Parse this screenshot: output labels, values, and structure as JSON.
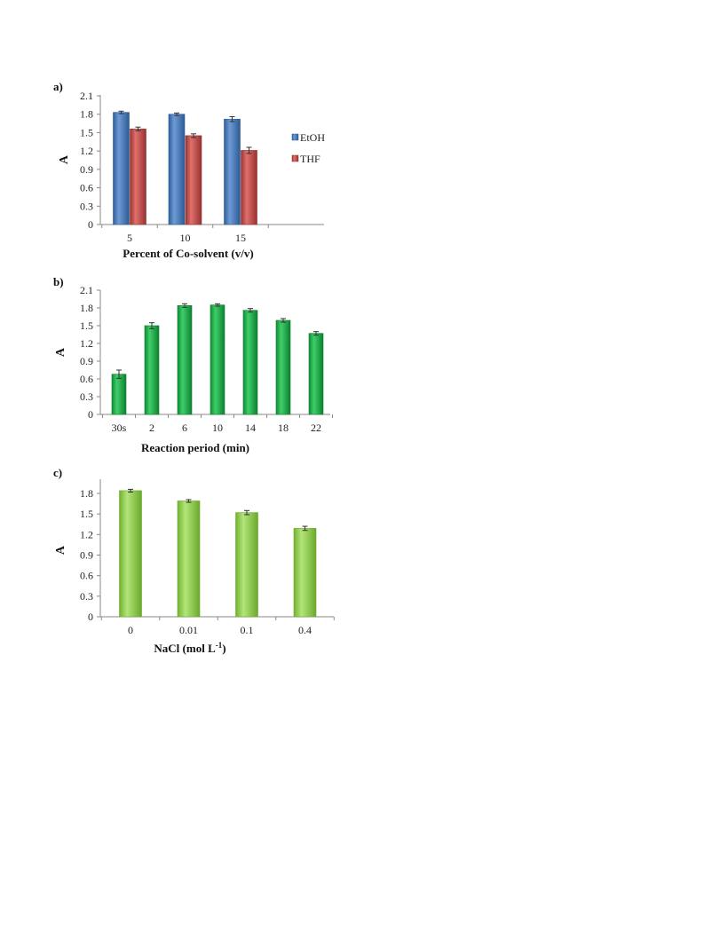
{
  "chart_data": [
    {
      "type": "bar",
      "panel": "a)",
      "categories": [
        "5",
        "10",
        "15"
      ],
      "series": [
        {
          "name": "EtOH",
          "values": [
            1.83,
            1.8,
            1.72
          ],
          "errors": [
            0.02,
            0.02,
            0.04
          ],
          "color": "#4f81bd"
        },
        {
          "name": "THF",
          "values": [
            1.56,
            1.45,
            1.21
          ],
          "errors": [
            0.03,
            0.03,
            0.05
          ],
          "color": "#c0504d"
        }
      ],
      "xlabel": "Percent of Co-solvent (v/v)",
      "ylabel": "A",
      "ylim": [
        0,
        2.1
      ],
      "yticks": [
        "0",
        "0.3",
        "0.6",
        "0.9",
        "1.2",
        "1.5",
        "1.8",
        "2.1"
      ],
      "legend": "right",
      "grid": false
    },
    {
      "type": "bar",
      "panel": "b)",
      "categories": [
        "30s",
        "2",
        "6",
        "10",
        "14",
        "18",
        "22"
      ],
      "series": [
        {
          "values": [
            0.68,
            1.5,
            1.84,
            1.85,
            1.76,
            1.59,
            1.37
          ],
          "errors": [
            0.07,
            0.05,
            0.03,
            0.02,
            0.03,
            0.03,
            0.03
          ],
          "color": "#1fae4b"
        }
      ],
      "xlabel": "Reaction period (min)",
      "ylabel": "A",
      "ylim": [
        0,
        2.1
      ],
      "yticks": [
        "0",
        "0.3",
        "0.6",
        "0.9",
        "1.2",
        "1.5",
        "1.8",
        "2.1"
      ],
      "grid": false
    },
    {
      "type": "bar",
      "panel": "c)",
      "categories": [
        "0",
        "0.01",
        "0.1",
        "0.4"
      ],
      "series": [
        {
          "values": [
            1.84,
            1.69,
            1.52,
            1.29
          ],
          "errors": [
            0.02,
            0.02,
            0.03,
            0.03
          ],
          "color": "#92d050"
        }
      ],
      "xlabel": "NaCl (mol L",
      "xlabel_sup": "-1",
      "xlabel_tail": ")",
      "ylabel": "A",
      "ylim": [
        0,
        2.0
      ],
      "yticks": [
        "0",
        "0.3",
        "0.6",
        "0.9",
        "1.2",
        "1.5",
        "1.8"
      ],
      "grid": false
    }
  ]
}
